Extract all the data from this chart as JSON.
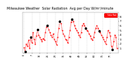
{
  "title": "Milwaukee Weather  Solar Radiation  Avg per Day W/m²/minute",
  "bg_color": "#ffffff",
  "plot_bg": "#ffffff",
  "grid_color": "#c0c0c0",
  "line_color": "#ff0000",
  "dot_color": "#000000",
  "legend_label": "Solar Rad",
  "legend_bg": "#ff0000",
  "ylim": [
    0,
    9
  ],
  "yticks": [
    1,
    2,
    3,
    4,
    5,
    6,
    7,
    8
  ],
  "ylabel_fontsize": 3.0,
  "xlabel_fontsize": 2.5,
  "title_fontsize": 3.5,
  "x_values": [
    0,
    1,
    2,
    3,
    4,
    5,
    6,
    7,
    8,
    9,
    10,
    11,
    12,
    13,
    14,
    15,
    16,
    17,
    18,
    19,
    20,
    21,
    22,
    23,
    24,
    25,
    26,
    27,
    28,
    29,
    30,
    31,
    32,
    33,
    34,
    35,
    36,
    37,
    38,
    39,
    40,
    41,
    42,
    43,
    44,
    45,
    46,
    47,
    48,
    49,
    50,
    51,
    52,
    53,
    54,
    55,
    56,
    57,
    58,
    59,
    60,
    61,
    62,
    63,
    64,
    65,
    66,
    67,
    68,
    69,
    70,
    71,
    72,
    73,
    74,
    75,
    76,
    77,
    78,
    79,
    80,
    81,
    82,
    83
  ],
  "y_values": [
    1.2,
    0.3,
    2.0,
    1.5,
    2.8,
    1.0,
    3.5,
    2.2,
    4.5,
    3.0,
    2.0,
    3.8,
    5.2,
    4.0,
    3.5,
    3.0,
    2.5,
    3.2,
    2.8,
    4.5,
    5.8,
    6.0,
    5.2,
    4.5,
    4.0,
    3.5,
    4.2,
    3.0,
    2.5,
    1.8,
    3.5,
    5.5,
    7.0,
    6.5,
    5.0,
    4.2,
    3.8,
    3.0,
    2.8,
    2.2,
    3.5,
    5.0,
    6.8,
    7.5,
    7.0,
    6.0,
    5.5,
    5.0,
    4.5,
    4.0,
    3.5,
    4.5,
    6.0,
    6.5,
    6.0,
    5.5,
    5.0,
    4.8,
    4.2,
    3.8,
    3.2,
    2.8,
    3.5,
    4.5,
    5.5,
    6.0,
    5.5,
    4.8,
    4.5,
    4.0,
    3.5,
    3.0,
    2.5,
    2.0,
    3.5,
    5.0,
    4.5,
    3.8,
    1.5,
    0.8,
    2.5,
    4.0,
    3.5,
    1.0
  ],
  "black_indices": [
    1,
    6,
    12,
    21,
    32,
    43,
    55,
    67,
    79
  ],
  "vgrid_step": 7,
  "marker_size": 1.2,
  "linewidth": 0.5,
  "dashes": [
    1.5,
    1.0
  ]
}
